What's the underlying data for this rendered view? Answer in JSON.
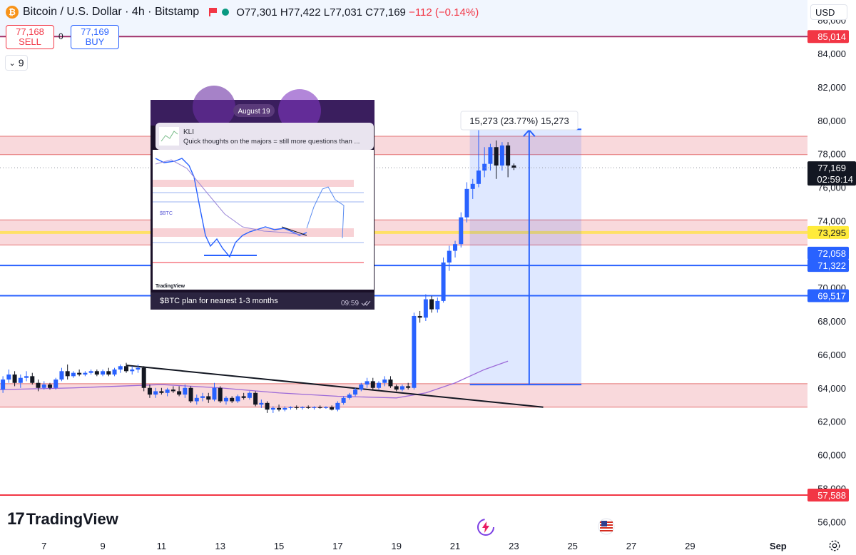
{
  "header": {
    "symbol_title": "Bitcoin / U.S. Dollar · 4h · Bitstamp",
    "ohlc": "O77,301 H77,422 L77,031 C77,169",
    "change": "−112 (−0.14%)",
    "logo_letter": "₿"
  },
  "trade": {
    "sell_price": "77,168",
    "sell_label": "SELL",
    "spread": "0",
    "buy_price": "77,169",
    "buy_label": "BUY"
  },
  "indicators_count": "9",
  "currency": "USD",
  "branding": "TradingView",
  "colors": {
    "up": "#2962ff",
    "down": "#131722",
    "zone": "#f8d2d6",
    "measure": "#2962ff"
  },
  "inset": {
    "date_badge": "August 19",
    "author": "KLI",
    "title": "Quick thoughts on the majors = still more questions than ...",
    "caption": "$BTC plan for nearest 1-3 months",
    "time": "09:59",
    "ticker": "$BTC",
    "brand": "TradingView"
  },
  "measure": {
    "label": "15,273 (23.77%) 15,273"
  },
  "chart_data": {
    "type": "candlestick",
    "title": "Bitcoin / U.S. Dollar · 4h · Bitstamp",
    "ylim": [
      55200,
      87200
    ],
    "xlim": [
      5.5,
      33.0
    ],
    "y_ticks": [
      {
        "label": "86,000",
        "v": 86000
      },
      {
        "label": "84,000",
        "v": 84000
      },
      {
        "label": "82,000",
        "v": 82000
      },
      {
        "label": "80,000",
        "v": 80000
      },
      {
        "label": "78,000",
        "v": 78000
      },
      {
        "label": "76,000",
        "v": 76000
      },
      {
        "label": "74,000",
        "v": 74000
      },
      {
        "label": "70,000",
        "v": 70000
      },
      {
        "label": "68,000",
        "v": 68000
      },
      {
        "label": "66,000",
        "v": 66000
      },
      {
        "label": "64,000",
        "v": 64000
      },
      {
        "label": "62,000",
        "v": 62000
      },
      {
        "label": "60,000",
        "v": 60000
      },
      {
        "label": "58,000",
        "v": 58000
      },
      {
        "label": "56,000",
        "v": 56000
      }
    ],
    "x_ticks": [
      {
        "label": "7",
        "v": 7
      },
      {
        "label": "9",
        "v": 9
      },
      {
        "label": "11",
        "v": 11
      },
      {
        "label": "13",
        "v": 13
      },
      {
        "label": "15",
        "v": 15
      },
      {
        "label": "17",
        "v": 17
      },
      {
        "label": "19",
        "v": 19
      },
      {
        "label": "21",
        "v": 21
      },
      {
        "label": "23",
        "v": 23
      },
      {
        "label": "25",
        "v": 25
      },
      {
        "label": "27",
        "v": 27
      },
      {
        "label": "29",
        "v": 29
      },
      {
        "label": "Sep",
        "v": 32
      }
    ],
    "price_labels": [
      {
        "label": "85,014",
        "v": 85014,
        "color": "#f23645",
        "line": "#a0306a"
      },
      {
        "label": "73,295",
        "v": 73295,
        "color": "#ffeb3b",
        "text": "#131722",
        "line": "#ffe066"
      },
      {
        "label": "72,058",
        "v": 72058,
        "color": "#2962ff"
      },
      {
        "label": "71,322",
        "v": 71322,
        "color": "#2962ff",
        "line": "#2962ff"
      },
      {
        "label": "69,517",
        "v": 69517,
        "color": "#2962ff",
        "line": "#2962ff"
      },
      {
        "label": "57,588",
        "v": 57588,
        "color": "#f23645",
        "line": "#f23645"
      }
    ],
    "last_price": {
      "label": "77,169",
      "countdown": "02:59:14",
      "v": 77169
    },
    "zones": [
      {
        "from": 77950,
        "to": 79050
      },
      {
        "from": 72550,
        "to": 74050
      },
      {
        "from": 62850,
        "to": 64250
      }
    ],
    "trendline": {
      "x1": 9.8,
      "y1": 65350,
      "x2": 24.0,
      "y2": 62850
    },
    "ma": [
      [
        5.5,
        63900
      ],
      [
        8,
        64000
      ],
      [
        11,
        64200
      ],
      [
        13,
        64000
      ],
      [
        15,
        63700
      ],
      [
        17,
        63500
      ],
      [
        19,
        63400
      ],
      [
        20,
        63700
      ],
      [
        21,
        64300
      ],
      [
        22,
        65100
      ],
      [
        22.8,
        65600
      ]
    ],
    "measure": {
      "x1": 21.5,
      "x2": 25.3,
      "from": 64196,
      "to": 79469
    },
    "candles": [
      {
        "x": 5.6,
        "o": 63900,
        "h": 64700,
        "l": 63700,
        "c": 64500
      },
      {
        "x": 5.8,
        "o": 64500,
        "h": 65100,
        "l": 64300,
        "c": 64800
      },
      {
        "x": 6.0,
        "o": 64800,
        "h": 65000,
        "l": 64100,
        "c": 64300
      },
      {
        "x": 6.2,
        "o": 64300,
        "h": 64800,
        "l": 64000,
        "c": 64600
      },
      {
        "x": 6.4,
        "o": 64600,
        "h": 65000,
        "l": 64400,
        "c": 64700
      },
      {
        "x": 6.6,
        "o": 64700,
        "h": 64900,
        "l": 64200,
        "c": 64300
      },
      {
        "x": 6.8,
        "o": 64300,
        "h": 64500,
        "l": 63800,
        "c": 64000
      },
      {
        "x": 7.0,
        "o": 64000,
        "h": 64400,
        "l": 63900,
        "c": 64200
      },
      {
        "x": 7.2,
        "o": 64200,
        "h": 64300,
        "l": 63900,
        "c": 64000
      },
      {
        "x": 7.4,
        "o": 64000,
        "h": 64600,
        "l": 63900,
        "c": 64500
      },
      {
        "x": 7.6,
        "o": 64500,
        "h": 65200,
        "l": 64400,
        "c": 65000
      },
      {
        "x": 7.8,
        "o": 65000,
        "h": 65400,
        "l": 64500,
        "c": 64700
      },
      {
        "x": 8.0,
        "o": 64700,
        "h": 65000,
        "l": 64600,
        "c": 64900
      },
      {
        "x": 8.2,
        "o": 64900,
        "h": 65100,
        "l": 64700,
        "c": 64800
      },
      {
        "x": 8.4,
        "o": 64800,
        "h": 65000,
        "l": 64700,
        "c": 64900
      },
      {
        "x": 8.6,
        "o": 64900,
        "h": 65100,
        "l": 64800,
        "c": 65000
      },
      {
        "x": 8.8,
        "o": 65000,
        "h": 65100,
        "l": 64700,
        "c": 64800
      },
      {
        "x": 9.0,
        "o": 64800,
        "h": 65100,
        "l": 64700,
        "c": 65000
      },
      {
        "x": 9.2,
        "o": 65000,
        "h": 65200,
        "l": 64700,
        "c": 64800
      },
      {
        "x": 9.4,
        "o": 64800,
        "h": 65200,
        "l": 64700,
        "c": 65100
      },
      {
        "x": 9.6,
        "o": 65100,
        "h": 65400,
        "l": 64900,
        "c": 65300
      },
      {
        "x": 9.8,
        "o": 65300,
        "h": 65500,
        "l": 64900,
        "c": 65000
      },
      {
        "x": 10.0,
        "o": 65000,
        "h": 65300,
        "l": 64800,
        "c": 65100
      },
      {
        "x": 10.2,
        "o": 65100,
        "h": 65400,
        "l": 64900,
        "c": 65200
      },
      {
        "x": 10.4,
        "o": 65200,
        "h": 65300,
        "l": 63800,
        "c": 64000
      },
      {
        "x": 10.6,
        "o": 64000,
        "h": 64200,
        "l": 63400,
        "c": 63600
      },
      {
        "x": 10.8,
        "o": 63600,
        "h": 64000,
        "l": 63400,
        "c": 63800
      },
      {
        "x": 11.0,
        "o": 63800,
        "h": 64000,
        "l": 63600,
        "c": 63700
      },
      {
        "x": 11.2,
        "o": 63700,
        "h": 64000,
        "l": 63500,
        "c": 63900
      },
      {
        "x": 11.4,
        "o": 63900,
        "h": 64100,
        "l": 63700,
        "c": 63800
      },
      {
        "x": 11.6,
        "o": 63800,
        "h": 64100,
        "l": 63500,
        "c": 63600
      },
      {
        "x": 11.8,
        "o": 63600,
        "h": 64200,
        "l": 63400,
        "c": 64000
      },
      {
        "x": 12.0,
        "o": 64000,
        "h": 64100,
        "l": 63100,
        "c": 63200
      },
      {
        "x": 12.2,
        "o": 63200,
        "h": 63600,
        "l": 63000,
        "c": 63400
      },
      {
        "x": 12.4,
        "o": 63400,
        "h": 63700,
        "l": 63200,
        "c": 63500
      },
      {
        "x": 12.6,
        "o": 63500,
        "h": 63700,
        "l": 63100,
        "c": 63300
      },
      {
        "x": 12.8,
        "o": 63300,
        "h": 64300,
        "l": 63200,
        "c": 64000
      },
      {
        "x": 13.0,
        "o": 64000,
        "h": 64100,
        "l": 63100,
        "c": 63200
      },
      {
        "x": 13.2,
        "o": 63200,
        "h": 63500,
        "l": 63000,
        "c": 63400
      },
      {
        "x": 13.4,
        "o": 63400,
        "h": 63500,
        "l": 63100,
        "c": 63200
      },
      {
        "x": 13.6,
        "o": 63200,
        "h": 63600,
        "l": 63100,
        "c": 63500
      },
      {
        "x": 13.8,
        "o": 63500,
        "h": 63700,
        "l": 63300,
        "c": 63400
      },
      {
        "x": 14.0,
        "o": 63400,
        "h": 63800,
        "l": 63300,
        "c": 63700
      },
      {
        "x": 14.2,
        "o": 63700,
        "h": 63800,
        "l": 62900,
        "c": 63000
      },
      {
        "x": 14.4,
        "o": 63000,
        "h": 63300,
        "l": 62800,
        "c": 63100
      },
      {
        "x": 14.6,
        "o": 63100,
        "h": 63200,
        "l": 62500,
        "c": 62700
      },
      {
        "x": 14.8,
        "o": 62700,
        "h": 62900,
        "l": 62500,
        "c": 62800
      },
      {
        "x": 15.0,
        "o": 62800,
        "h": 63000,
        "l": 62600,
        "c": 62700
      },
      {
        "x": 15.2,
        "o": 62700,
        "h": 62900,
        "l": 62600,
        "c": 62800
      },
      {
        "x": 15.4,
        "o": 62800,
        "h": 62900,
        "l": 62700,
        "c": 62850
      },
      {
        "x": 15.6,
        "o": 62850,
        "h": 62950,
        "l": 62700,
        "c": 62800
      },
      {
        "x": 15.8,
        "o": 62800,
        "h": 62900,
        "l": 62700,
        "c": 62850
      },
      {
        "x": 16.0,
        "o": 62850,
        "h": 62950,
        "l": 62750,
        "c": 62800
      },
      {
        "x": 16.2,
        "o": 62800,
        "h": 62900,
        "l": 62700,
        "c": 62850
      },
      {
        "x": 16.4,
        "o": 62850,
        "h": 62950,
        "l": 62750,
        "c": 62800
      },
      {
        "x": 16.6,
        "o": 62800,
        "h": 62900,
        "l": 62750,
        "c": 62850
      },
      {
        "x": 16.8,
        "o": 62850,
        "h": 62950,
        "l": 62650,
        "c": 62700
      },
      {
        "x": 17.0,
        "o": 62700,
        "h": 63200,
        "l": 62600,
        "c": 63100
      },
      {
        "x": 17.2,
        "o": 63100,
        "h": 63500,
        "l": 63000,
        "c": 63400
      },
      {
        "x": 17.4,
        "o": 63400,
        "h": 63700,
        "l": 63300,
        "c": 63600
      },
      {
        "x": 17.6,
        "o": 63600,
        "h": 64000,
        "l": 63500,
        "c": 63900
      },
      {
        "x": 17.8,
        "o": 63900,
        "h": 64300,
        "l": 63800,
        "c": 64200
      },
      {
        "x": 18.0,
        "o": 64200,
        "h": 64600,
        "l": 64000,
        "c": 64400
      },
      {
        "x": 18.2,
        "o": 64400,
        "h": 64600,
        "l": 63900,
        "c": 64000
      },
      {
        "x": 18.4,
        "o": 64000,
        "h": 64400,
        "l": 63900,
        "c": 64300
      },
      {
        "x": 18.6,
        "o": 64300,
        "h": 64700,
        "l": 64100,
        "c": 64500
      },
      {
        "x": 18.8,
        "o": 64500,
        "h": 64700,
        "l": 64000,
        "c": 64100
      },
      {
        "x": 19.0,
        "o": 64100,
        "h": 64200,
        "l": 63800,
        "c": 63900
      },
      {
        "x": 19.2,
        "o": 63900,
        "h": 64200,
        "l": 63800,
        "c": 64100
      },
      {
        "x": 19.4,
        "o": 64100,
        "h": 64300,
        "l": 63900,
        "c": 64000
      },
      {
        "x": 19.6,
        "o": 64000,
        "h": 68500,
        "l": 63900,
        "c": 68300
      },
      {
        "x": 19.8,
        "o": 68300,
        "h": 68600,
        "l": 67900,
        "c": 68200
      },
      {
        "x": 20.0,
        "o": 68200,
        "h": 69600,
        "l": 68000,
        "c": 69300
      },
      {
        "x": 20.2,
        "o": 69300,
        "h": 69500,
        "l": 68500,
        "c": 68700
      },
      {
        "x": 20.4,
        "o": 68700,
        "h": 69400,
        "l": 68500,
        "c": 69200
      },
      {
        "x": 20.6,
        "o": 69200,
        "h": 71800,
        "l": 69100,
        "c": 71500
      },
      {
        "x": 20.8,
        "o": 71500,
        "h": 72500,
        "l": 71000,
        "c": 72200
      },
      {
        "x": 21.0,
        "o": 72200,
        "h": 72800,
        "l": 71800,
        "c": 72600
      },
      {
        "x": 21.2,
        "o": 72600,
        "h": 74500,
        "l": 72400,
        "c": 74200
      },
      {
        "x": 21.4,
        "o": 74200,
        "h": 76300,
        "l": 73900,
        "c": 75900
      },
      {
        "x": 21.6,
        "o": 75900,
        "h": 76500,
        "l": 75300,
        "c": 76200
      },
      {
        "x": 21.8,
        "o": 76200,
        "h": 79500,
        "l": 76000,
        "c": 77000
      },
      {
        "x": 22.0,
        "o": 77000,
        "h": 78400,
        "l": 76600,
        "c": 77400
      },
      {
        "x": 22.2,
        "o": 77400,
        "h": 78600,
        "l": 77000,
        "c": 78400
      },
      {
        "x": 22.4,
        "o": 78400,
        "h": 78800,
        "l": 76500,
        "c": 77300
      },
      {
        "x": 22.6,
        "o": 77300,
        "h": 78700,
        "l": 77000,
        "c": 78500
      },
      {
        "x": 22.8,
        "o": 78500,
        "h": 78700,
        "l": 76600,
        "c": 77300
      },
      {
        "x": 23.0,
        "o": 77301,
        "h": 77422,
        "l": 77031,
        "c": 77169
      }
    ]
  }
}
